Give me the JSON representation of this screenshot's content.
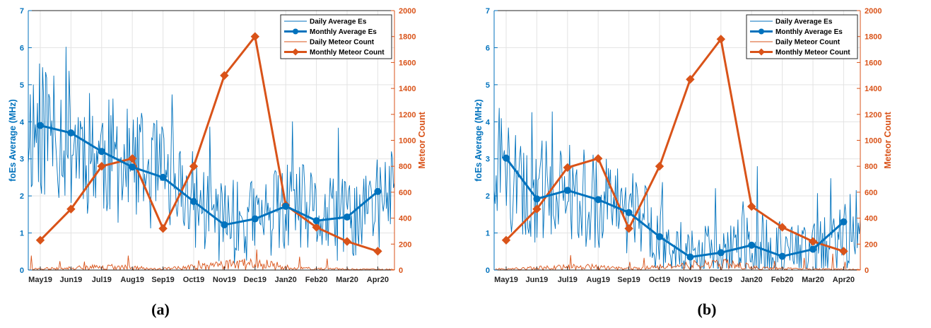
{
  "colors": {
    "blue": "#0072BD",
    "orange": "#D95319",
    "grid": "#e3e3e3",
    "axis": "#262626"
  },
  "charts": [
    {
      "caption": "(a)",
      "chart_data": {
        "type": "line",
        "title": "",
        "xlabel": "",
        "ylabel_left": "foEs Average (MHz)",
        "ylabel_right": "Meteor Count",
        "ylim_left": [
          0,
          7
        ],
        "ylim_right": [
          0,
          2000
        ],
        "yticks_left": [
          "0",
          "1",
          "2",
          "3",
          "4",
          "5",
          "6",
          "7"
        ],
        "yticks_right": [
          "0",
          "200",
          "400",
          "600",
          "800",
          "1000",
          "1200",
          "1400",
          "1600",
          "1800",
          "2000"
        ],
        "categories": [
          "May19",
          "Jun19",
          "Jul19",
          "Aug19",
          "Sep19",
          "Oct19",
          "Nov19",
          "Dec19",
          "Jan20",
          "Feb20",
          "Mar20",
          "Apr20"
        ],
        "legend": [
          "Daily Average Es",
          "Monthly Average Es",
          "Daily Meteor Count",
          "Monthly Meteor Count"
        ],
        "legend_position": "top-right",
        "grid": true,
        "series": [
          {
            "name": "Monthly Average Es",
            "axis": "left",
            "values": [
              3.9,
              3.7,
              3.2,
              2.78,
              2.5,
              1.85,
              1.22,
              1.38,
              1.72,
              1.33,
              1.43,
              2.12
            ]
          },
          {
            "name": "Monthly Meteor Count",
            "axis": "right",
            "values": [
              230,
              470,
              800,
              860,
              320,
              800,
              1500,
              1800,
              500,
              330,
              220,
              145
            ]
          }
        ]
      }
    },
    {
      "caption": "(b)",
      "chart_data": {
        "type": "line",
        "title": "",
        "xlabel": "",
        "ylabel_left": "foEs Average (MHz)",
        "ylabel_right": "Meteor Count",
        "ylim_left": [
          0,
          7
        ],
        "ylim_right": [
          0,
          2000
        ],
        "yticks_left": [
          "0",
          "1",
          "2",
          "3",
          "4",
          "5",
          "6",
          "7"
        ],
        "yticks_right": [
          "0",
          "200",
          "400",
          "600",
          "800",
          "1000",
          "1200",
          "1400",
          "1600",
          "1800",
          "2000"
        ],
        "categories": [
          "May19",
          "Jun19",
          "Jul19",
          "Aug19",
          "Sep19",
          "Oct19",
          "Nov19",
          "Dec19",
          "Jan20",
          "Feb20",
          "Mar20",
          "Apr20"
        ],
        "legend": [
          "Daily Average Es",
          "Monthly Average Es",
          "Daily Meteor Count",
          "Monthly Meteor Count"
        ],
        "legend_position": "top-right",
        "grid": true,
        "series": [
          {
            "name": "Monthly Average Es",
            "axis": "left",
            "values": [
              3.02,
              1.92,
              2.15,
              1.9,
              1.55,
              0.9,
              0.35,
              0.47,
              0.67,
              0.37,
              0.56,
              1.3
            ]
          },
          {
            "name": "Monthly Meteor Count",
            "axis": "right",
            "values": [
              230,
              470,
              790,
              860,
              320,
              800,
              1470,
              1780,
              490,
              330,
              220,
              145
            ]
          }
        ]
      }
    }
  ]
}
